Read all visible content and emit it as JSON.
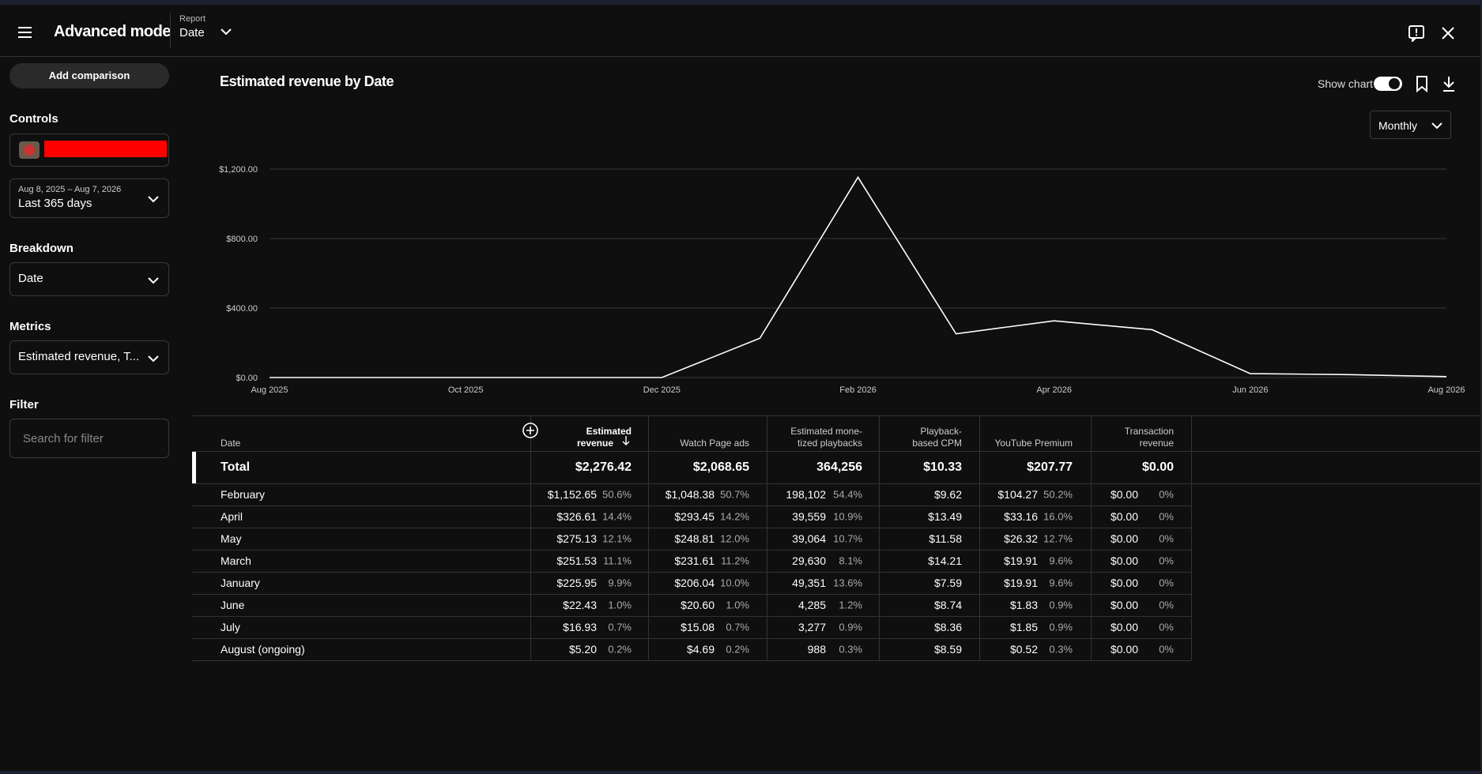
{
  "header": {
    "title": "Advanced mode",
    "report_label": "Report",
    "report_value": "Date"
  },
  "sidebar": {
    "add_comparison": "Add comparison",
    "controls_label": "Controls",
    "date_range": "Aug 8, 2025 – Aug 7, 2026",
    "date_preset": "Last 365 days",
    "breakdown_label": "Breakdown",
    "breakdown_value": "Date",
    "metrics_label": "Metrics",
    "metrics_value": "Estimated revenue, T...",
    "filter_label": "Filter",
    "filter_placeholder": "Search for filter"
  },
  "report": {
    "title": "Estimated revenue by Date",
    "show_chart": "Show chart",
    "interval": "Monthly"
  },
  "chart_data": {
    "type": "line",
    "categories": [
      "Aug 2025",
      null,
      "Oct 2025",
      null,
      "Dec 2025",
      null,
      "Feb 2026",
      null,
      "Apr 2026",
      null,
      "Jun 2026",
      null,
      "Aug 2026"
    ],
    "values": [
      0,
      0,
      0,
      0,
      0,
      225.95,
      1152.65,
      251.53,
      326.61,
      275.13,
      22.43,
      16.93,
      5.2
    ],
    "color": "#ffffff",
    "ylim": [
      0,
      1200
    ],
    "yticks": [
      {
        "value": 0,
        "label": "$0.00"
      },
      {
        "value": 400,
        "label": "$400.00"
      },
      {
        "value": 800,
        "label": "$800.00"
      },
      {
        "value": 1200,
        "label": "$1,200.00"
      }
    ],
    "grid": true
  },
  "table": {
    "columns": [
      [
        "Date"
      ],
      [
        "Estimated",
        "revenue"
      ],
      [
        "Watch Page ads"
      ],
      [
        "Estimated mone-",
        "tized playbacks"
      ],
      [
        "Playback-",
        "based CPM"
      ],
      [
        "YouTube Premium"
      ],
      [
        "Transaction",
        "revenue"
      ]
    ],
    "total": [
      "Total",
      "$2,276.42",
      "$2,068.65",
      "364,256",
      "$10.33",
      "$207.77",
      "$0.00"
    ],
    "rows": [
      [
        "February",
        "$1,152.65",
        "50.6%",
        "$1,048.38",
        "50.7%",
        "198,102",
        "54.4%",
        "$9.62",
        "$104.27",
        "50.2%",
        "$0.00",
        "0%"
      ],
      [
        "April",
        "$326.61",
        "14.4%",
        "$293.45",
        "14.2%",
        "39,559",
        "10.9%",
        "$13.49",
        "$33.16",
        "16.0%",
        "$0.00",
        "0%"
      ],
      [
        "May",
        "$275.13",
        "12.1%",
        "$248.81",
        "12.0%",
        "39,064",
        "10.7%",
        "$11.58",
        "$26.32",
        "12.7%",
        "$0.00",
        "0%"
      ],
      [
        "March",
        "$251.53",
        "11.1%",
        "$231.61",
        "11.2%",
        "29,630",
        "8.1%",
        "$14.21",
        "$19.91",
        "9.6%",
        "$0.00",
        "0%"
      ],
      [
        "January",
        "$225.95",
        "9.9%",
        "$206.04",
        "10.0%",
        "49,351",
        "13.6%",
        "$7.59",
        "$19.91",
        "9.6%",
        "$0.00",
        "0%"
      ],
      [
        "June",
        "$22.43",
        "1.0%",
        "$20.60",
        "1.0%",
        "4,285",
        "1.2%",
        "$8.74",
        "$1.83",
        "0.9%",
        "$0.00",
        "0%"
      ],
      [
        "July",
        "$16.93",
        "0.7%",
        "$15.08",
        "0.7%",
        "3,277",
        "0.9%",
        "$8.36",
        "$1.85",
        "0.9%",
        "$0.00",
        "0%"
      ],
      [
        "August (ongoing)",
        "$5.20",
        "0.2%",
        "$4.69",
        "0.2%",
        "988",
        "0.3%",
        "$8.59",
        "$0.52",
        "0.3%",
        "$0.00",
        "0%"
      ]
    ]
  }
}
